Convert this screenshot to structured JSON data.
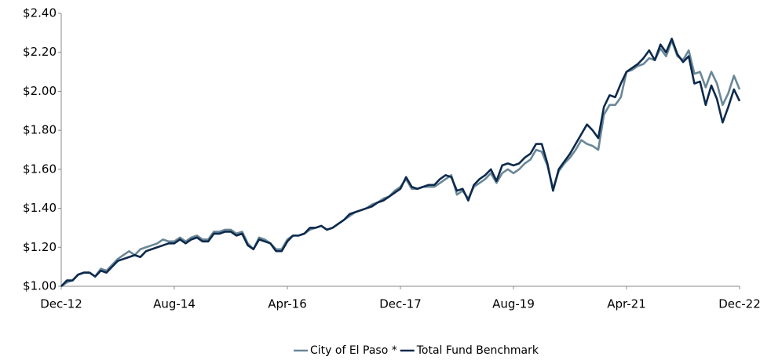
{
  "chart_data": {
    "type": "line",
    "categories": [
      "Dec-12",
      null,
      null,
      null,
      null,
      null,
      null,
      null,
      null,
      null,
      null,
      null,
      null,
      null,
      null,
      null,
      null,
      null,
      null,
      null,
      "Aug-14",
      null,
      null,
      null,
      null,
      null,
      null,
      null,
      null,
      null,
      null,
      null,
      null,
      null,
      null,
      null,
      null,
      null,
      null,
      null,
      "Apr-16",
      null,
      null,
      null,
      null,
      null,
      null,
      null,
      null,
      null,
      null,
      null,
      null,
      null,
      null,
      null,
      null,
      null,
      null,
      null,
      "Dec-17",
      null,
      null,
      null,
      null,
      null,
      null,
      null,
      null,
      null,
      null,
      null,
      null,
      null,
      null,
      null,
      null,
      null,
      null,
      null,
      "Aug-19",
      null,
      null,
      null,
      null,
      null,
      null,
      null,
      null,
      null,
      null,
      null,
      null,
      null,
      null,
      null,
      null,
      null,
      null,
      null,
      "Apr-21",
      null,
      null,
      null,
      null,
      null,
      null,
      null,
      null,
      null,
      null,
      null,
      null,
      null,
      null,
      null,
      null,
      null,
      null,
      null,
      "Dec-22"
    ],
    "series": [
      {
        "name": "City of El Paso *",
        "color": "#6a8797",
        "values": [
          1.0,
          1.02,
          1.03,
          1.06,
          1.07,
          1.07,
          1.05,
          1.09,
          1.08,
          1.11,
          1.14,
          1.16,
          1.18,
          1.16,
          1.19,
          1.2,
          1.21,
          1.22,
          1.24,
          1.23,
          1.23,
          1.25,
          1.23,
          1.25,
          1.26,
          1.24,
          1.24,
          1.28,
          1.28,
          1.29,
          1.29,
          1.27,
          1.28,
          1.22,
          1.19,
          1.25,
          1.24,
          1.22,
          1.19,
          1.19,
          1.24,
          1.26,
          1.26,
          1.27,
          1.29,
          1.3,
          1.31,
          1.29,
          1.3,
          1.32,
          1.34,
          1.36,
          1.38,
          1.39,
          1.4,
          1.42,
          1.43,
          1.45,
          1.46,
          1.49,
          1.51,
          1.55,
          1.5,
          1.5,
          1.51,
          1.51,
          1.51,
          1.53,
          1.55,
          1.57,
          1.47,
          1.49,
          1.45,
          1.51,
          1.53,
          1.55,
          1.58,
          1.53,
          1.58,
          1.6,
          1.58,
          1.6,
          1.63,
          1.65,
          1.7,
          1.69,
          1.62,
          1.5,
          1.59,
          1.63,
          1.66,
          1.7,
          1.75,
          1.73,
          1.72,
          1.7,
          1.88,
          1.93,
          1.93,
          1.97,
          2.1,
          2.11,
          2.13,
          2.14,
          2.17,
          2.16,
          2.22,
          2.18,
          2.26,
          2.18,
          2.16,
          2.21,
          2.09,
          2.1,
          2.02,
          2.1,
          2.04,
          1.93,
          1.99,
          2.08,
          2.01
        ]
      },
      {
        "name": "Total Fund Benchmark",
        "color": "#0d2a4d",
        "values": [
          1.0,
          1.03,
          1.03,
          1.06,
          1.07,
          1.07,
          1.05,
          1.08,
          1.07,
          1.1,
          1.13,
          1.14,
          1.15,
          1.16,
          1.15,
          1.18,
          1.19,
          1.2,
          1.21,
          1.22,
          1.22,
          1.24,
          1.22,
          1.24,
          1.25,
          1.23,
          1.23,
          1.27,
          1.27,
          1.28,
          1.28,
          1.26,
          1.27,
          1.21,
          1.19,
          1.24,
          1.23,
          1.22,
          1.18,
          1.18,
          1.23,
          1.26,
          1.26,
          1.27,
          1.3,
          1.3,
          1.31,
          1.29,
          1.3,
          1.32,
          1.34,
          1.37,
          1.38,
          1.39,
          1.4,
          1.41,
          1.43,
          1.44,
          1.46,
          1.48,
          1.5,
          1.56,
          1.51,
          1.5,
          1.51,
          1.52,
          1.52,
          1.55,
          1.57,
          1.56,
          1.49,
          1.5,
          1.44,
          1.52,
          1.55,
          1.57,
          1.6,
          1.54,
          1.62,
          1.63,
          1.62,
          1.63,
          1.66,
          1.68,
          1.73,
          1.73,
          1.63,
          1.49,
          1.6,
          1.64,
          1.68,
          1.73,
          1.78,
          1.83,
          1.8,
          1.76,
          1.92,
          1.98,
          1.97,
          2.04,
          2.1,
          2.12,
          2.14,
          2.17,
          2.21,
          2.16,
          2.24,
          2.2,
          2.27,
          2.19,
          2.15,
          2.18,
          2.04,
          2.05,
          1.93,
          2.03,
          1.96,
          1.84,
          1.92,
          2.01,
          1.95
        ]
      }
    ],
    "ylim": [
      1.0,
      2.4
    ],
    "yticks": [
      {
        "value": 1.0,
        "label": "$1.00"
      },
      {
        "value": 1.2,
        "label": "$1.20"
      },
      {
        "value": 1.4,
        "label": "$1.40"
      },
      {
        "value": 1.6,
        "label": "$1.60"
      },
      {
        "value": 1.8,
        "label": "$1.80"
      },
      {
        "value": 2.0,
        "label": "$2.00"
      },
      {
        "value": 2.2,
        "label": "$2.20"
      },
      {
        "value": 2.4,
        "label": "$2.40"
      }
    ],
    "grid": false,
    "legend": "bottom"
  }
}
